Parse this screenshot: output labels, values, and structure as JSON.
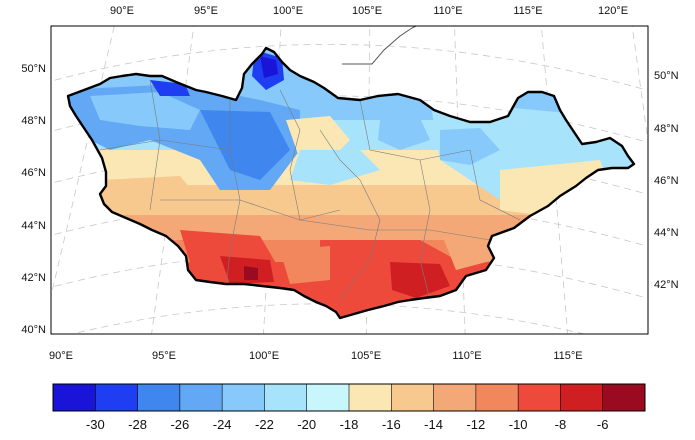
{
  "map": {
    "top_lon_labels": [
      "90°E",
      "95°E",
      "100°E",
      "105°E",
      "110°E",
      "115°E",
      "120°E"
    ],
    "bottom_lon_labels": [
      "90°E",
      "95°E",
      "100°E",
      "105°E",
      "110°E",
      "115°E"
    ],
    "left_lat_labels": [
      "50°N",
      "48°N",
      "46°N",
      "44°N",
      "42°N",
      "40°N"
    ],
    "right_lat_labels": [
      "50°N",
      "48°N",
      "46°N",
      "44°N",
      "42°N"
    ],
    "field_description_colors": {
      "coldest": "#1414cc",
      "cold": "#5aa8f5",
      "mid": "#aef2ff",
      "warm": "#f7c98e",
      "hot": "#f04a3c",
      "hottest": "#a00020"
    },
    "boundary_color": "#000000",
    "grid": "dashed-gray"
  },
  "colorbar": {
    "labels": [
      "-30",
      "-28",
      "-26",
      "-24",
      "-22",
      "-20",
      "-18",
      "-16",
      "-14",
      "-12",
      "-10",
      "-8",
      "-6"
    ],
    "colors": [
      "#1a14d9",
      "#1f3ef2",
      "#3f86ee",
      "#62a8f5",
      "#86c9fa",
      "#a8e3fc",
      "#c7f7fd",
      "#fbe7b4",
      "#f7c98e",
      "#f4a878",
      "#f2865d",
      "#ee4a3c",
      "#d01f23",
      "#9a0b22"
    ]
  }
}
